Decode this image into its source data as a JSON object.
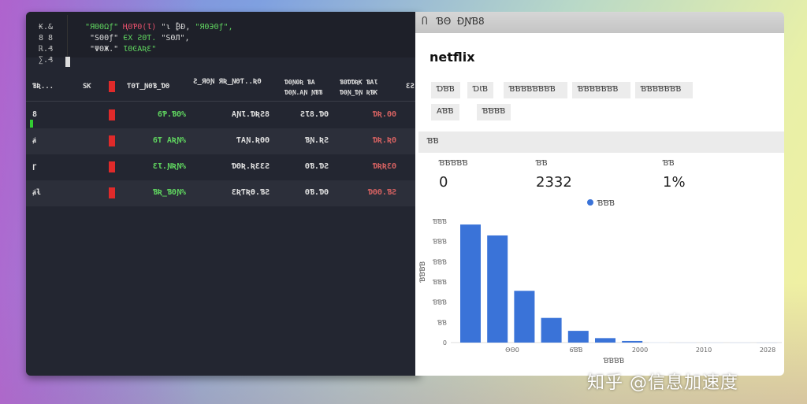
{
  "terminal": {
    "line_numbers": [
      "₭.&",
      "8 8",
      "ℝ.₰",
      "∑.₰"
    ],
    "code": [
      [
        {
          "t": "\"ЯΘΘΩƒ\" ",
          "c": "#5fd35f"
        },
        {
          "t": "ҢΘƤΘ(Ɩ) ",
          "c": "#e0506a"
        },
        {
          "t": "\"ɩ ₿Ɖ, ",
          "c": "#ddd"
        },
        {
          "t": "\"ЯΘЭΘƒ\",",
          "c": "#5fd35f"
        }
      ],
      [
        {
          "t": " \"ЅΘΘƒ\" ",
          "c": "#ddd"
        },
        {
          "t": "ЄΧ ƧΘƬ. ",
          "c": "#5fd35f"
        },
        {
          "t": "\"ЅΘЛ\",",
          "c": "#ddd"
        }
      ],
      [
        {
          "t": " \"ΨΘЖ.\" ",
          "c": "#ddd"
        },
        {
          "t": "ƖΘϾΑƦƐ\"",
          "c": "#5fd35f"
        }
      ]
    ],
    "headers": [
      "ƁƦ...",
      "ЅƘ",
      "ƬΘƬ_ƝΘƁ_ƊΘ",
      "Ƨ_ЯΘƝ ЯƦ_ƝΘƬ..ƦΘ",
      "ƊΘƝΘƦ ƁΑ ƊΘƝ.ΑƝ ƝƁƁ",
      "ƁΘƊƊƦƘ ƁΑƖ ƊΘƝ_ƊƝ ƦƁƘ",
      "ƐƧ"
    ],
    "rows": [
      {
        "id": "8",
        "pct": "6Ƥ.ƁΘ%",
        "total": "ΑƝƖ.ƊƦƧ8",
        "mid": "ƧƖ8.ƊΘ",
        "val": "ƊƦ.ΘΘ"
      },
      {
        "id": "ⱥ",
        "pct": "6Ƭ ΑƦƝ%",
        "total": "ƬΑƝ.ƦΘΘ",
        "mid": "ƁƝ.ƦƧ",
        "val": "ƊƦ.ƦΘ"
      },
      {
        "id": "ɼ",
        "pct": "ƐƖ.ƝƦƝ%",
        "total": "ƊΘƦ.ƦƐƐƧ",
        "mid": "ΘƁ.ƊƧ",
        "val": "ƊƦƦƐΘ"
      },
      {
        "id": "ⱥƚ",
        "pct": "ƁƦ_ƁΘƝ%",
        "total": "ƐƦƬƦƟ.ƁƧ",
        "mid": "ΘƁ.ƊΘ",
        "val": "ƊΘΘ.ƁƧ"
      }
    ]
  },
  "panel": {
    "tab_labels": [
      "Ⴖ",
      "ƁΘ",
      "ƉƝƁ8"
    ],
    "title": "netflix",
    "chips": [
      "ƊƁƁ",
      "ƊƖƁ",
      "ƁƁƁƁƁƁƁƁ",
      "ƁƁƁƁƁƁƁ",
      "ƁƁƁƁƁƁƁ",
      "ΑƁƁ",
      "ƁƁƁƁ"
    ],
    "section": "ƁƁ",
    "stats": [
      {
        "label": "ƁƁƁƁƁ",
        "value": "0"
      },
      {
        "label": "ƁƁ",
        "value": "2332"
      },
      {
        "label": "ƁƁ",
        "value": "1%"
      }
    ]
  },
  "chart_data": {
    "type": "bar",
    "legend": "ƁƁƁ",
    "legend_position": "top-center",
    "color": "#3a73d8",
    "ylabel": "ƁƁƁƁ",
    "xlabel": "ƁƁƁƁ",
    "ylim": [
      0,
      600
    ],
    "yticks": [
      "0",
      "ƁƁ",
      "ƁƁƁ",
      "ƁƁƁ",
      "ƁƁƁ",
      "ƁƁƁ",
      "ƁƁƁ"
    ],
    "xticks": [
      "ΘΘ0",
      "6ƁƁ",
      "2000",
      "2010",
      "2028"
    ],
    "values": [
      584,
      530,
      256,
      122,
      58,
      22,
      8,
      2,
      1,
      1,
      1,
      0
    ]
  },
  "watermark": "知乎 @信息加速度"
}
